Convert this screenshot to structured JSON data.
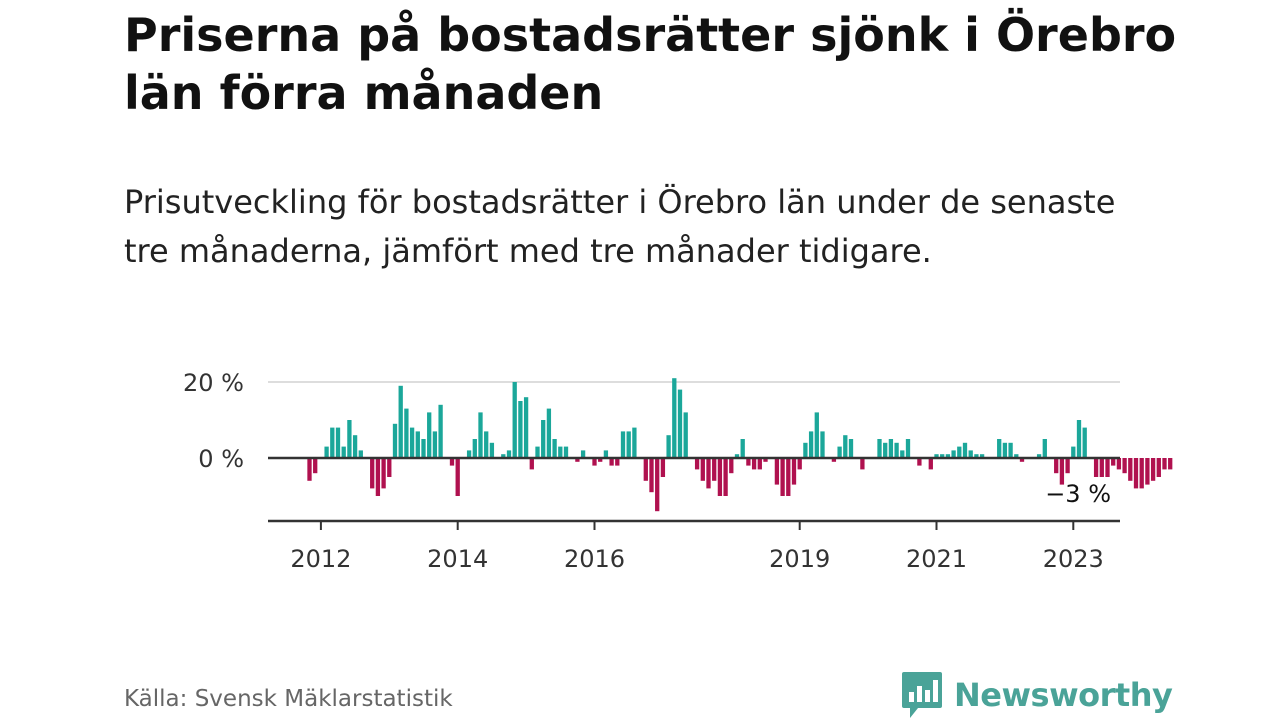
{
  "title": "Priserna på bostadsrätter sjönk i Örebro län förra månaden",
  "subtitle": "Prisutveckling för bostadsrätter i Örebro län under de senaste tre månaderna, jämfört med tre månader tidigare.",
  "source": "Källa: Svensk Mäklarstatistik",
  "brand": "Newsworthy",
  "colors": {
    "positive": "#1ba79a",
    "negative": "#b0114f",
    "brand": "#4aa398",
    "axis": "#333333",
    "grid": "#dddddd"
  },
  "chart_data": {
    "type": "bar",
    "x_start": "2011-11",
    "x_unit": "month",
    "values": [
      -6,
      -4,
      0,
      3,
      8,
      8,
      3,
      10,
      6,
      2,
      0,
      -8,
      -10,
      -8,
      -5,
      9,
      19,
      13,
      8,
      7,
      5,
      12,
      7,
      14,
      0,
      -2,
      -10,
      0,
      2,
      5,
      12,
      7,
      4,
      0,
      1,
      2,
      20,
      15,
      16,
      -3,
      3,
      10,
      13,
      5,
      3,
      3,
      0,
      -1,
      2,
      0,
      -2,
      -1,
      2,
      -2,
      -2,
      7,
      7,
      8,
      0,
      -6,
      -9,
      -14,
      -5,
      6,
      21,
      18,
      12,
      0,
      -3,
      -6,
      -8,
      -6,
      -10,
      -10,
      -4,
      1,
      5,
      -2,
      -3,
      -3,
      -1,
      0,
      -7,
      -10,
      -10,
      -7,
      -3,
      4,
      7,
      12,
      7,
      0,
      -1,
      3,
      6,
      5,
      0,
      -3,
      0,
      0,
      5,
      4,
      5,
      4,
      2,
      5,
      0,
      -2,
      0,
      -3,
      1,
      1,
      1,
      2,
      3,
      4,
      2,
      1,
      1,
      0,
      0,
      5,
      4,
      4,
      1,
      -1,
      0,
      0,
      1,
      5,
      0,
      -4,
      -7,
      -4,
      3,
      10,
      8,
      0,
      -5,
      -5,
      -5,
      -2,
      -3,
      -4,
      -6,
      -8,
      -8,
      -7,
      -6,
      -5,
      -3,
      -3
    ],
    "ylim": [
      -15,
      20
    ],
    "yticks": [
      20,
      0
    ],
    "ytick_labels": [
      "20 %",
      "0 %"
    ],
    "xticks": [
      {
        "label": "2012",
        "index": 2
      },
      {
        "label": "2014",
        "index": 26
      },
      {
        "label": "2016",
        "index": 50
      },
      {
        "label": "2019",
        "index": 86
      },
      {
        "label": "2021",
        "index": 110
      },
      {
        "label": "2023",
        "index": 134
      }
    ],
    "end_label": "−3 %",
    "grid": true
  }
}
